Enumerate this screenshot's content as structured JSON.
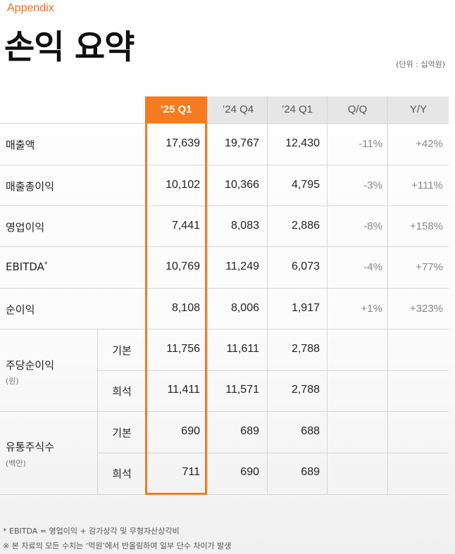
{
  "header": {
    "section_tag": "Appendix",
    "title": "손익 요약",
    "unit": "(단위 : 십억원)"
  },
  "table": {
    "columns": [
      "’25 Q1",
      "’24 Q4",
      "’24 Q1",
      "Q/Q",
      "Y/Y"
    ],
    "highlight_column": "’25 Q1",
    "rows": {
      "revenue": {
        "label": "매출액",
        "values": [
          "17,639",
          "19,767",
          "12,430",
          "-11%",
          "+42%"
        ]
      },
      "gross_profit": {
        "label": "매출총이익",
        "values": [
          "10,102",
          "10,366",
          "4,795",
          "-3%",
          "+111%"
        ]
      },
      "operating_income": {
        "label": "영업이익",
        "values": [
          "7,441",
          "8,083",
          "2,886",
          "-8%",
          "+158%"
        ]
      },
      "ebitda": {
        "label": "EBITDA",
        "sup": "*",
        "values": [
          "10,769",
          "11,249",
          "6,073",
          "-4%",
          "+77%"
        ]
      },
      "net_income": {
        "label": "순이익",
        "values": [
          "8,108",
          "8,006",
          "1,917",
          "+1%",
          "+323%"
        ]
      }
    },
    "eps": {
      "label": "주당순이익",
      "unit": "(원)",
      "basic": {
        "label": "기본",
        "values": [
          "11,756",
          "11,611",
          "2,788"
        ]
      },
      "diluted": {
        "label": "희석",
        "values": [
          "11,411",
          "11,571",
          "2,788"
        ]
      }
    },
    "shares": {
      "label": "유통주식수",
      "unit": "(백만)",
      "basic": {
        "label": "기본",
        "values": [
          "690",
          "689",
          "688"
        ]
      },
      "diluted": {
        "label": "희석",
        "values": [
          "711",
          "690",
          "689"
        ]
      }
    }
  },
  "footnotes": [
    "* EBITDA = 영업이익 + 감가상각 및 무형자산상각비",
    "※ 본 자료의 모든 수치는 ‘억원’에서 반올림하여 일부 단수 차이가 발생"
  ],
  "colors": {
    "accent": "#f47b20",
    "header_bg": "#e6e6e6"
  }
}
